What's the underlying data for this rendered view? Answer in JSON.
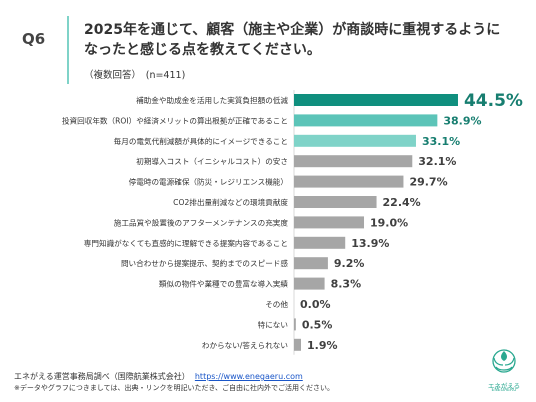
{
  "header": {
    "q_number": "Q6",
    "title": "2025年を通じて、顧客（施主や企業）が商談時に重視するように\nなったと感じる点を教えてください。",
    "subtitle": "（複数回答）　(n=411)"
  },
  "chart_data": {
    "type": "bar",
    "orientation": "horizontal",
    "categories": [
      "補助金や助成金を活用した実質負担額の低減",
      "投資回収年数（ROI）や経済メリットの算出根拠が正確であること",
      "毎月の電気代削減額が具体的にイメージできること",
      "初期導入コスト（イニシャルコスト）の安さ",
      "停電時の電源確保（防災・レジリエンス機能）",
      "CO2排出量削減などの環境貢献度",
      "施工品質や設置後のアフターメンテナンスの充実度",
      "専門知識がなくても直感的に理解できる提案内容であること",
      "問い合わせから提案提示、契約までのスピード感",
      "類似の物件や業種での豊富な導入実績",
      "その他",
      "特にない",
      "わからない/答えられない"
    ],
    "values": [
      44.5,
      38.9,
      33.1,
      32.1,
      29.7,
      22.4,
      19.0,
      13.9,
      9.2,
      8.3,
      0.0,
      0.5,
      1.9
    ],
    "value_labels": [
      "44.5%",
      "38.9%",
      "33.1%",
      "32.1%",
      "29.7%",
      "22.4%",
      "19.0%",
      "13.9%",
      "9.2%",
      "8.3%",
      "0.0%",
      "0.5%",
      "1.9%"
    ],
    "xlim": [
      0,
      50
    ],
    "colors": {
      "top": "#0f8f7e",
      "second": "#5cc4b8",
      "third": "#7fd3c8",
      "other": "#a6a6a6",
      "label_highlight": "#177e70"
    }
  },
  "footer": {
    "source_prefix": "エネがえる運営事務局調べ（国際航業株式会社）",
    "source_url": "https://www.enegaeru.com",
    "note": "※データやグラフにつきましては、出典・リンクを明記いただき、ご自由に社内外でご活用ください。"
  },
  "logo": {
    "icon": "leaf-wreath-icon",
    "text": "エネがえる",
    "sub": "ENEGAERU"
  }
}
